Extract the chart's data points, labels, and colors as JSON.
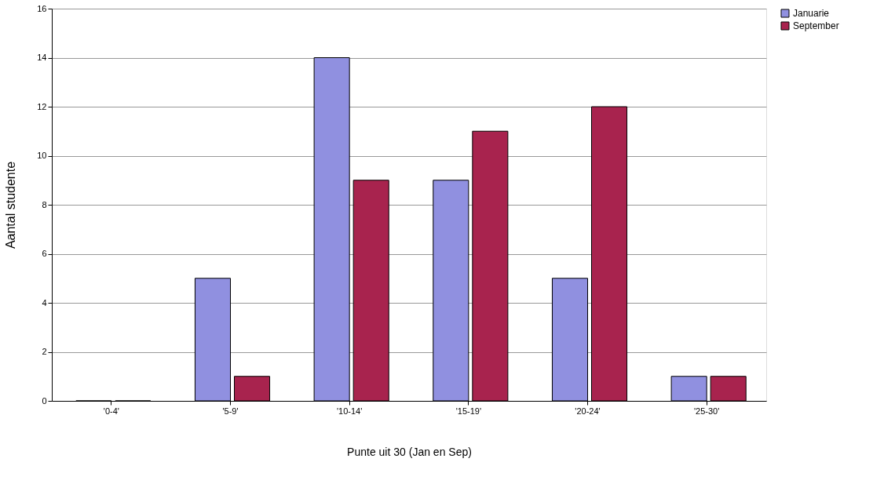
{
  "chart_data": {
    "type": "bar",
    "xlabel": "Punte uit 30 (Jan en Sep)",
    "ylabel": "Aantal studente",
    "categories": [
      "'0-4'",
      "'5-9'",
      "'10-14'",
      "'15-19'",
      "'20-24'",
      "'25-30'"
    ],
    "series": [
      {
        "name": "Januarie",
        "color": "#9090e0",
        "values": [
          0,
          5,
          14,
          9,
          5,
          1
        ]
      },
      {
        "name": "September",
        "color": "#a8234e",
        "values": [
          0,
          1,
          9,
          11,
          12,
          1
        ]
      }
    ],
    "ylim": [
      0,
      16
    ],
    "yticks": [
      0,
      2,
      4,
      6,
      8,
      10,
      12,
      14,
      16
    ],
    "grid": "y",
    "legend": "right"
  }
}
